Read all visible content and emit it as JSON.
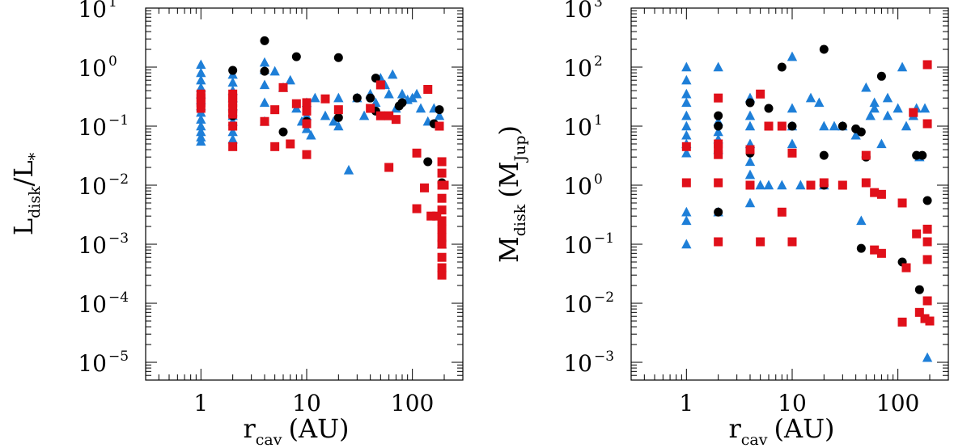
{
  "colors": {
    "black_series": "#000000",
    "blue_series": "#1e7fd8",
    "red_series": "#e0101a"
  },
  "chart_data": [
    {
      "type": "scatter",
      "xscale": "log",
      "yscale": "log",
      "xlim": [
        0.3,
        300
      ],
      "ylim": [
        5e-06,
        10
      ],
      "xticks": [
        1,
        10,
        100
      ],
      "xtick_labels": [
        "1",
        "10",
        "100"
      ],
      "yticks": [
        1e-05,
        0.0001,
        0.001,
        0.01,
        0.1,
        1,
        10
      ],
      "ytick_bases": [
        "10",
        "10",
        "10",
        "10",
        "10",
        "10",
        "10"
      ],
      "ytick_exps": [
        "−5",
        "−4",
        "−3",
        "−2",
        "−1",
        "0",
        "1"
      ],
      "xlabel_main": "r",
      "xlabel_sub": "cav",
      "xlabel_unit": "(AU)",
      "ylabel_main": "L",
      "ylabel_sub": "disk",
      "ylabel_rest": "/L",
      "ylabel_sub2": "*",
      "series": [
        {
          "marker": "triangle",
          "color": "#1e7fd8",
          "points": [
            [
              1,
              1.1
            ],
            [
              1,
              0.8
            ],
            [
              1,
              0.6
            ],
            [
              1,
              0.45
            ],
            [
              1,
              0.35
            ],
            [
              1,
              0.28
            ],
            [
              1,
              0.22
            ],
            [
              1,
              0.17
            ],
            [
              1,
              0.13
            ],
            [
              1,
              0.1
            ],
            [
              1,
              0.08
            ],
            [
              1,
              0.065
            ],
            [
              1,
              0.055
            ],
            [
              2,
              0.75
            ],
            [
              2,
              0.55
            ],
            [
              2,
              0.4
            ],
            [
              2,
              0.3
            ],
            [
              2,
              0.22
            ],
            [
              2,
              0.15
            ],
            [
              2,
              0.12
            ],
            [
              2,
              0.08
            ],
            [
              2,
              0.06
            ],
            [
              4,
              1.2
            ],
            [
              4,
              0.9
            ],
            [
              4,
              0.5
            ],
            [
              4,
              0.25
            ],
            [
              4,
              0.12
            ],
            [
              5,
              0.85
            ],
            [
              6,
              0.45
            ],
            [
              7,
              0.6
            ],
            [
              8,
              0.2
            ],
            [
              9,
              0.12
            ],
            [
              10,
              0.25
            ],
            [
              10,
              0.15
            ],
            [
              10,
              0.09
            ],
            [
              11,
              0.07
            ],
            [
              12,
              0.3
            ],
            [
              15,
              0.15
            ],
            [
              18,
              0.12
            ],
            [
              20,
              0.3
            ],
            [
              20,
              0.1
            ],
            [
              25,
              0.018
            ],
            [
              30,
              0.3
            ],
            [
              35,
              0.15
            ],
            [
              40,
              0.35
            ],
            [
              45,
              0.25
            ],
            [
              50,
              0.65
            ],
            [
              55,
              0.5
            ],
            [
              60,
              0.35
            ],
            [
              65,
              0.75
            ],
            [
              70,
              0.2
            ],
            [
              80,
              0.35
            ],
            [
              90,
              0.28
            ],
            [
              100,
              0.3
            ],
            [
              110,
              0.35
            ],
            [
              120,
              0.2
            ],
            [
              140,
              0.12
            ],
            [
              160,
              0.2
            ],
            [
              180,
              0.15
            ],
            [
              190,
              0.001
            ]
          ]
        },
        {
          "marker": "circle",
          "color": "#000000",
          "points": [
            [
              2,
              0.88
            ],
            [
              2,
              0.15
            ],
            [
              4,
              2.8
            ],
            [
              4,
              0.85
            ],
            [
              6,
              0.08
            ],
            [
              8,
              1.5
            ],
            [
              10,
              0.12
            ],
            [
              20,
              1.45
            ],
            [
              20,
              0.14
            ],
            [
              30,
              0.3
            ],
            [
              40,
              0.3
            ],
            [
              45,
              0.65
            ],
            [
              45,
              0.18
            ],
            [
              75,
              0.22
            ],
            [
              80,
              0.25
            ],
            [
              140,
              0.025
            ],
            [
              160,
              0.11
            ],
            [
              180,
              0.19
            ],
            [
              190,
              0.011
            ]
          ]
        },
        {
          "marker": "square",
          "color": "#e0101a",
          "points": [
            [
              1,
              0.35
            ],
            [
              1,
              0.3
            ],
            [
              1,
              0.25
            ],
            [
              1,
              0.2
            ],
            [
              2,
              0.35
            ],
            [
              2,
              0.3
            ],
            [
              2,
              0.25
            ],
            [
              2,
              0.2
            ],
            [
              2,
              0.16
            ],
            [
              2,
              0.1
            ],
            [
              2,
              0.045
            ],
            [
              4,
              0.12
            ],
            [
              5,
              0.045
            ],
            [
              5,
              0.19
            ],
            [
              6,
              0.45
            ],
            [
              7,
              0.05
            ],
            [
              8,
              0.24
            ],
            [
              10,
              0.25
            ],
            [
              10,
              0.18
            ],
            [
              10,
              0.11
            ],
            [
              10,
              0.033
            ],
            [
              15,
              0.29
            ],
            [
              20,
              0.19
            ],
            [
              40,
              0.2
            ],
            [
              50,
              0.5
            ],
            [
              50,
              0.15
            ],
            [
              60,
              0.15
            ],
            [
              60,
              0.02
            ],
            [
              70,
              0.13
            ],
            [
              110,
              0.035
            ],
            [
              110,
              0.004
            ],
            [
              130,
              0.009
            ],
            [
              140,
              0.42
            ],
            [
              150,
              0.003
            ],
            [
              170,
              0.003
            ],
            [
              180,
              0.1
            ],
            [
              190,
              0.025
            ],
            [
              190,
              0.016
            ],
            [
              190,
              0.01
            ],
            [
              190,
              0.006
            ],
            [
              190,
              0.0038
            ],
            [
              190,
              0.0025
            ],
            [
              190,
              0.0018
            ],
            [
              190,
              0.0013
            ],
            [
              190,
              0.001
            ],
            [
              190,
              0.0006
            ],
            [
              190,
              0.0004
            ],
            [
              190,
              0.0003
            ],
            [
              200,
              0.01
            ]
          ]
        }
      ]
    },
    {
      "type": "scatter",
      "xscale": "log",
      "yscale": "log",
      "xlim": [
        0.3,
        300
      ],
      "ylim": [
        0.0005,
        1000
      ],
      "xticks": [
        1,
        10,
        100
      ],
      "xtick_labels": [
        "1",
        "10",
        "100"
      ],
      "yticks": [
        0.001,
        0.01,
        0.1,
        1,
        10,
        100,
        1000
      ],
      "ytick_bases": [
        "10",
        "10",
        "10",
        "10",
        "10",
        "10",
        "10"
      ],
      "ytick_exps": [
        "−3",
        "−2",
        "−1",
        "0",
        "1",
        "2",
        "3"
      ],
      "xlabel_main": "r",
      "xlabel_sub": "cav",
      "xlabel_unit": "(AU)",
      "ylabel_main": "M",
      "ylabel_sub": "disk",
      "ylabel_rest": "(M",
      "ylabel_sub2": "Jup",
      "ylabel_close": ")",
      "series": [
        {
          "marker": "triangle",
          "color": "#1e7fd8",
          "points": [
            [
              1,
              100
            ],
            [
              1,
              60
            ],
            [
              1,
              35
            ],
            [
              1,
              25
            ],
            [
              1,
              15
            ],
            [
              1,
              10
            ],
            [
              1,
              7
            ],
            [
              1,
              5
            ],
            [
              1,
              3.5
            ],
            [
              1,
              0.35
            ],
            [
              1,
              0.25
            ],
            [
              1,
              0.1
            ],
            [
              2,
              100
            ],
            [
              2,
              12
            ],
            [
              2,
              8
            ],
            [
              2,
              6
            ],
            [
              2,
              4
            ],
            [
              2,
              0.35
            ],
            [
              4,
              30
            ],
            [
              4,
              15
            ],
            [
              4,
              10
            ],
            [
              4,
              5
            ],
            [
              4,
              2.5
            ],
            [
              4,
              1.5
            ],
            [
              4,
              0.5
            ],
            [
              5,
              1
            ],
            [
              6,
              1
            ],
            [
              8,
              1
            ],
            [
              10,
              150
            ],
            [
              10,
              20
            ],
            [
              10,
              10
            ],
            [
              10,
              5
            ],
            [
              12,
              1
            ],
            [
              15,
              30
            ],
            [
              18,
              25
            ],
            [
              20,
              10
            ],
            [
              20,
              1
            ],
            [
              25,
              10
            ],
            [
              30,
              10
            ],
            [
              40,
              7
            ],
            [
              45,
              0.25
            ],
            [
              50,
              45
            ],
            [
              55,
              15
            ],
            [
              60,
              20
            ],
            [
              60,
              25
            ],
            [
              70,
              5
            ],
            [
              80,
              30
            ],
            [
              80,
              15
            ],
            [
              100,
              20
            ],
            [
              110,
              100
            ],
            [
              120,
              10
            ],
            [
              140,
              15
            ],
            [
              150,
              20
            ],
            [
              160,
              3
            ],
            [
              180,
              20
            ],
            [
              190,
              0.0012
            ]
          ]
        },
        {
          "marker": "circle",
          "color": "#000000",
          "points": [
            [
              2,
              15
            ],
            [
              2,
              10
            ],
            [
              2,
              0.35
            ],
            [
              4,
              25
            ],
            [
              4,
              3.5
            ],
            [
              6,
              20
            ],
            [
              8,
              100
            ],
            [
              10,
              10
            ],
            [
              20,
              200
            ],
            [
              20,
              3.2
            ],
            [
              20,
              1
            ],
            [
              30,
              10
            ],
            [
              40,
              9
            ],
            [
              45,
              8
            ],
            [
              45,
              0.085
            ],
            [
              50,
              3
            ],
            [
              70,
              70
            ],
            [
              110,
              0.05
            ],
            [
              150,
              3.2
            ],
            [
              160,
              0.017
            ],
            [
              170,
              3.2
            ],
            [
              190,
              0.55
            ]
          ]
        },
        {
          "marker": "square",
          "color": "#e0101a",
          "points": [
            [
              1,
              4.5
            ],
            [
              1,
              1.1
            ],
            [
              2,
              30
            ],
            [
              2,
              5
            ],
            [
              2,
              4.2
            ],
            [
              2,
              3.3
            ],
            [
              2,
              1.1
            ],
            [
              2,
              0.11
            ],
            [
              4,
              4
            ],
            [
              4,
              1
            ],
            [
              5,
              35
            ],
            [
              5,
              0.11
            ],
            [
              6,
              10
            ],
            [
              8,
              10
            ],
            [
              8,
              0.35
            ],
            [
              10,
              3.5
            ],
            [
              10,
              0.11
            ],
            [
              15,
              1
            ],
            [
              20,
              1.1
            ],
            [
              30,
              1
            ],
            [
              50,
              3.2
            ],
            [
              50,
              1.1
            ],
            [
              60,
              0.75
            ],
            [
              60,
              0.08
            ],
            [
              70,
              0.7
            ],
            [
              70,
              0.07
            ],
            [
              110,
              0.5
            ],
            [
              110,
              0.0048
            ],
            [
              120,
              0.04
            ],
            [
              140,
              17
            ],
            [
              150,
              0.15
            ],
            [
              160,
              0.007
            ],
            [
              180,
              0.0055
            ],
            [
              190,
              110
            ],
            [
              190,
              11
            ],
            [
              190,
              0.18
            ],
            [
              190,
              0.11
            ],
            [
              190,
              0.055
            ],
            [
              190,
              0.011
            ],
            [
              200,
              0.005
            ]
          ]
        }
      ]
    }
  ]
}
